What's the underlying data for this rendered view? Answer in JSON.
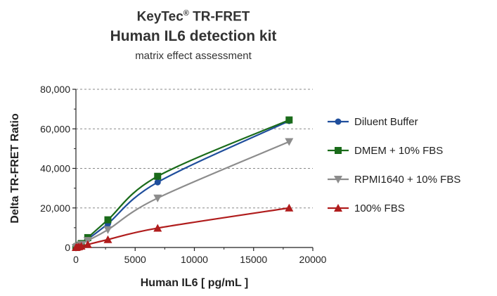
{
  "header": {
    "brand": "KeyTec",
    "reg": "®",
    "suffix": " TR-FRET",
    "title": "Human IL6 detection kit",
    "subtitle": "matrix effect assessment"
  },
  "chart_data": {
    "type": "line",
    "title": "KeyTec® TR-FRET Human IL6 detection kit",
    "subtitle": "matrix effect assessment",
    "xlabel": "Human IL6 [ pg/mL ]",
    "ylabel": "Delta TR-FRET Ratio",
    "xlim": [
      0,
      20000
    ],
    "ylim": [
      0,
      80000
    ],
    "xticks": [
      0,
      5000,
      10000,
      15000,
      20000
    ],
    "xtick_labels": [
      "0",
      "5000",
      "10000",
      "15000",
      "20000"
    ],
    "yticks": [
      0,
      20000,
      40000,
      60000,
      80000
    ],
    "ytick_labels": [
      "0",
      "20,000",
      "40,000",
      "60,000",
      "80,000"
    ],
    "grid": "horizontal dashed at 20,000 / 40,000 / 60,000",
    "legend_position": "right",
    "series": [
      {
        "name": "Diluent Buffer",
        "color": "#1f4e9c",
        "marker": "circle",
        "x": [
          0,
          100,
          250,
          450,
          1000,
          2700,
          6900,
          18000
        ],
        "y": [
          0,
          400,
          1000,
          1800,
          4200,
          12000,
          33000,
          64000
        ]
      },
      {
        "name": "DMEM + 10% FBS",
        "color": "#1a6b1a",
        "marker": "square",
        "x": [
          0,
          100,
          250,
          450,
          1000,
          2700,
          6900,
          18000
        ],
        "y": [
          0,
          450,
          1100,
          2000,
          5000,
          14000,
          36000,
          64500
        ]
      },
      {
        "name": "RPMI1640 + 10% FBS",
        "color": "#8c8c8c",
        "marker": "triangle-down",
        "x": [
          0,
          100,
          250,
          450,
          1000,
          2700,
          6900,
          18000
        ],
        "y": [
          0,
          350,
          900,
          1500,
          3500,
          9000,
          25000,
          53500
        ]
      },
      {
        "name": "100% FBS",
        "color": "#b01c1c",
        "marker": "triangle-up",
        "x": [
          0,
          100,
          250,
          450,
          1000,
          2700,
          6900,
          18000
        ],
        "y": [
          0,
          200,
          400,
          700,
          1500,
          4000,
          9800,
          20000
        ]
      }
    ]
  }
}
